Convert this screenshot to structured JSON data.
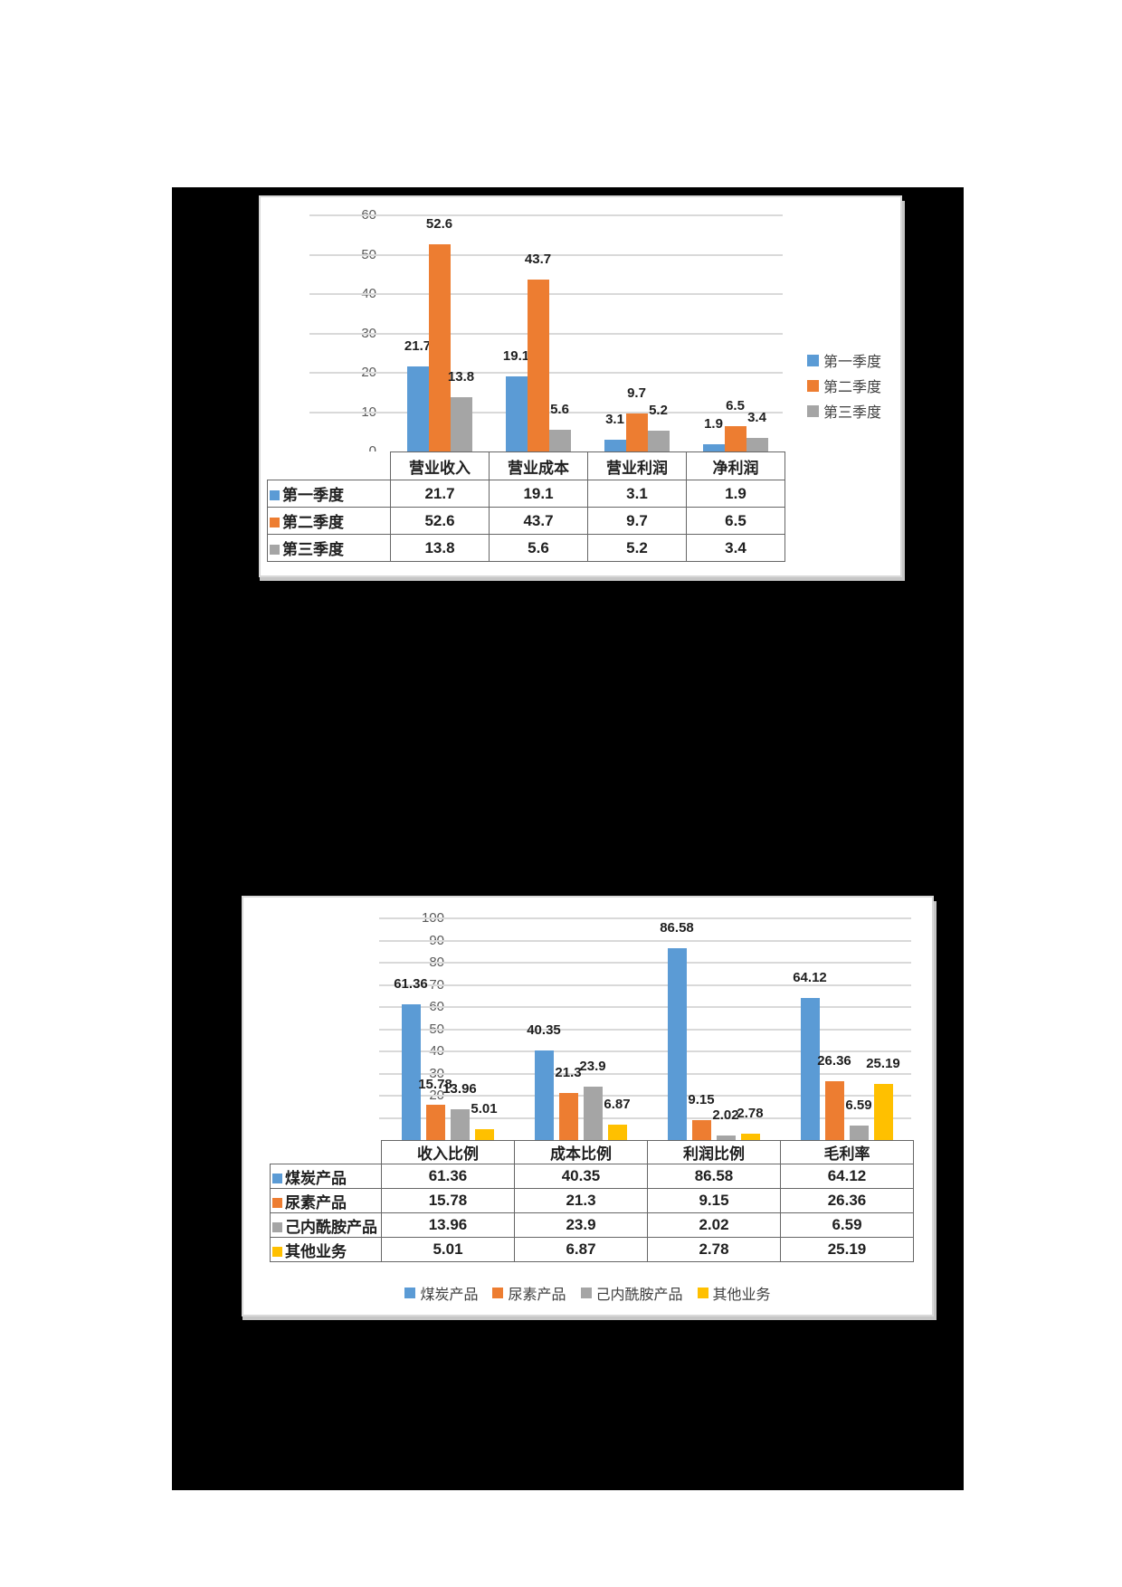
{
  "page": {
    "background_color": "#ffffff",
    "canvas_color": "#000000"
  },
  "chart_data": [
    {
      "type": "bar",
      "title": "",
      "xlabel": "",
      "ylabel": "",
      "categories": [
        "营业收入",
        "营业成本",
        "营业利润",
        "净利润"
      ],
      "series": [
        {
          "name": "第一季度",
          "color": "#5b9bd5",
          "values": [
            21.7,
            19.1,
            3.1,
            1.9
          ]
        },
        {
          "name": "第二季度",
          "color": "#ed7d31",
          "values": [
            52.6,
            43.7,
            9.7,
            6.5
          ]
        },
        {
          "name": "第三季度",
          "color": "#a5a5a5",
          "values": [
            13.8,
            5.6,
            5.2,
            3.4
          ]
        }
      ],
      "y_axis": {
        "min": 0,
        "max": 60,
        "step": 10,
        "ticks": [
          "0",
          "10",
          "20",
          "30",
          "40",
          "50",
          "60"
        ]
      },
      "grid": true,
      "data_labels": true,
      "data_table": true,
      "legend_position": "right"
    },
    {
      "type": "bar",
      "title": "",
      "xlabel": "",
      "ylabel": "",
      "categories": [
        "收入比例",
        "成本比例",
        "利润比例",
        "毛利率"
      ],
      "series": [
        {
          "name": "煤炭产品",
          "color": "#5b9bd5",
          "values": [
            61.36,
            40.35,
            86.58,
            64.12
          ]
        },
        {
          "name": "尿素产品",
          "color": "#ed7d31",
          "values": [
            15.78,
            21.3,
            9.15,
            26.36
          ]
        },
        {
          "name": "己内酰胺产品",
          "color": "#a5a5a5",
          "values": [
            13.96,
            23.9,
            2.02,
            6.59
          ]
        },
        {
          "name": "其他业务",
          "color": "#ffc000",
          "values": [
            5.01,
            6.87,
            2.78,
            25.19
          ]
        }
      ],
      "y_axis": {
        "min": 0,
        "max": 100,
        "step": 10,
        "ticks": [
          "0",
          "10",
          "20",
          "30",
          "40",
          "50",
          "60",
          "70",
          "80",
          "90",
          "100"
        ]
      },
      "grid": true,
      "data_labels": true,
      "data_table": true,
      "legend_position": "bottom"
    }
  ]
}
